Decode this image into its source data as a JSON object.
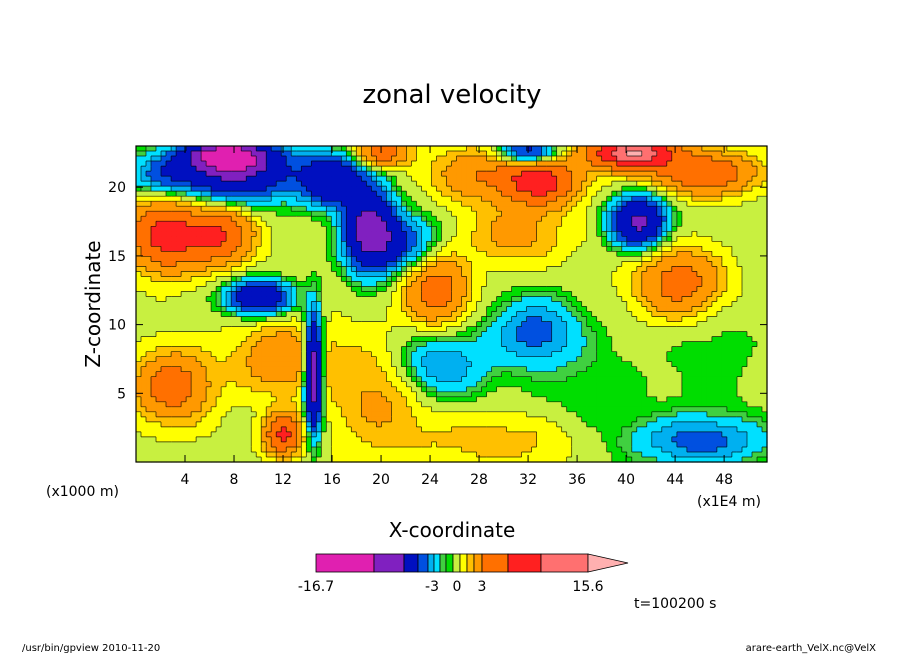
{
  "chart_data": {
    "type": "heatmap",
    "title": "zonal velocity",
    "xlabel": "X-coordinate",
    "ylabel": "Z-coordinate",
    "x_unit_left": "(x1000 m)",
    "x_unit_right": "(x1E4 m)",
    "xlim": [
      0,
      51.5
    ],
    "ylim": [
      0,
      23
    ],
    "x_ticks": [
      4,
      8,
      12,
      16,
      20,
      24,
      28,
      32,
      36,
      40,
      44,
      48
    ],
    "y_ticks": [
      5,
      10,
      15,
      20
    ],
    "colorbar": {
      "min_label": "-16.7",
      "max_label": "15.6",
      "mid_labels": [
        "-3",
        "0",
        "3"
      ],
      "colors": [
        "#e020b0",
        "#8020c0",
        "#0010c0",
        "#0050e0",
        "#00b0f0",
        "#00e0ff",
        "#40d040",
        "#00dd00",
        "#c8f040",
        "#ffff00",
        "#ffc000",
        "#ff9900",
        "#ff7000",
        "#ff2020",
        "#ff7070",
        "#ffb0b0"
      ]
    },
    "time_label": "t=100200 s",
    "features": [
      {
        "cx": 7.5,
        "cy": 22.3,
        "rx": 3.0,
        "ry": 1.0,
        "v": -14
      },
      {
        "cx": 8.0,
        "cy": 21.0,
        "rx": 5.0,
        "ry": 2.0,
        "v": -9
      },
      {
        "cx": 16.0,
        "cy": 20.5,
        "rx": 2.5,
        "ry": 1.8,
        "v": -8
      },
      {
        "cx": 19.0,
        "cy": 17.0,
        "rx": 2.0,
        "ry": 3.0,
        "v": -10
      },
      {
        "cx": 21.5,
        "cy": 16.0,
        "rx": 3.0,
        "ry": 2.0,
        "v": -5
      },
      {
        "cx": 32.0,
        "cy": 22.5,
        "rx": 2.5,
        "ry": 1.0,
        "v": -8
      },
      {
        "cx": 41.0,
        "cy": 17.5,
        "rx": 2.2,
        "ry": 1.8,
        "v": -10
      },
      {
        "cx": 10.0,
        "cy": 12.0,
        "rx": 2.5,
        "ry": 1.2,
        "v": -9
      },
      {
        "cx": 14.5,
        "cy": 6.5,
        "rx": 0.7,
        "ry": 4.0,
        "v": -14
      },
      {
        "cx": 32.5,
        "cy": 9.5,
        "rx": 3.5,
        "ry": 2.5,
        "v": -4
      },
      {
        "cx": 24.5,
        "cy": 7.0,
        "rx": 4.0,
        "ry": 2.5,
        "v": -4
      },
      {
        "cx": 46.0,
        "cy": 1.5,
        "rx": 5.5,
        "ry": 1.8,
        "v": -4
      },
      {
        "cx": 2.0,
        "cy": 21.0,
        "rx": 2.5,
        "ry": 1.5,
        "v": -3
      },
      {
        "cx": 2.5,
        "cy": 16.5,
        "rx": 3.0,
        "ry": 2.5,
        "v": 9
      },
      {
        "cx": 7.0,
        "cy": 16.5,
        "rx": 2.5,
        "ry": 2.0,
        "v": 7
      },
      {
        "cx": 20.0,
        "cy": 22.5,
        "rx": 2.0,
        "ry": 1.0,
        "v": 7
      },
      {
        "cx": 28.0,
        "cy": 21.0,
        "rx": 4.0,
        "ry": 2.0,
        "v": 4
      },
      {
        "cx": 33.0,
        "cy": 20.5,
        "rx": 3.0,
        "ry": 1.8,
        "v": 9
      },
      {
        "cx": 40.5,
        "cy": 22.5,
        "rx": 3.5,
        "ry": 1.2,
        "v": 13
      },
      {
        "cx": 46.5,
        "cy": 21.0,
        "rx": 4.0,
        "ry": 1.5,
        "v": 7
      },
      {
        "cx": 44.5,
        "cy": 13.0,
        "rx": 3.5,
        "ry": 2.5,
        "v": 6
      },
      {
        "cx": 24.5,
        "cy": 12.5,
        "rx": 2.5,
        "ry": 2.5,
        "v": 6
      },
      {
        "cx": 3.0,
        "cy": 5.5,
        "rx": 3.0,
        "ry": 2.5,
        "v": 6
      },
      {
        "cx": 31.0,
        "cy": 16.5,
        "rx": 4.0,
        "ry": 2.0,
        "v": 3
      },
      {
        "cx": 20.0,
        "cy": 5.0,
        "rx": 4.0,
        "ry": 4.0,
        "v": 3
      },
      {
        "cx": 12.0,
        "cy": 7.5,
        "rx": 4.0,
        "ry": 2.5,
        "v": 4
      },
      {
        "cx": 12.0,
        "cy": 2.0,
        "rx": 1.5,
        "ry": 1.5,
        "v": 8
      },
      {
        "cx": 47.0,
        "cy": 8.5,
        "rx": 4.0,
        "ry": 6.0,
        "v": -1
      },
      {
        "cx": 37.0,
        "cy": 5.0,
        "rx": 5.0,
        "ry": 5.0,
        "v": -1
      },
      {
        "cx": 30.0,
        "cy": 1.5,
        "rx": 7.0,
        "ry": 2.0,
        "v": 2
      },
      {
        "cx": 5.0,
        "cy": 11.0,
        "rx": 4.0,
        "ry": 2.5,
        "v": 0
      }
    ]
  },
  "footer": {
    "left": "/usr/bin/gpview   2010-11-20",
    "right": "arare-earth_VelX.nc@VelX"
  }
}
